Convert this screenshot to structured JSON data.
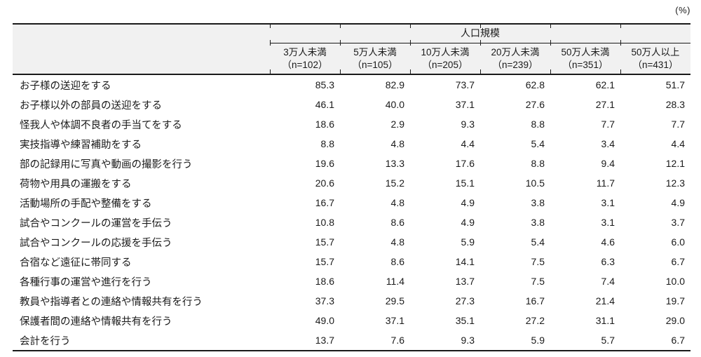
{
  "unit_label": "(%)",
  "colors": {
    "header_bg": "#f1f1f1",
    "border": "#1a1a1a",
    "text": "#1a1a1a",
    "body_bg": "#ffffff"
  },
  "chart_data": {
    "type": "table",
    "group_header": "人口規模",
    "unit": "%",
    "columns": [
      {
        "label": "3万人未満",
        "n": 102
      },
      {
        "label": "5万人未満",
        "n": 105
      },
      {
        "label": "10万人未満",
        "n": 205
      },
      {
        "label": "20万人未満",
        "n": 239
      },
      {
        "label": "50万人未満",
        "n": 351
      },
      {
        "label": "50万人以上",
        "n": 431
      }
    ],
    "rows": [
      {
        "label": "お子様の送迎をする",
        "values": [
          85.3,
          82.9,
          73.7,
          62.8,
          62.1,
          51.7
        ]
      },
      {
        "label": "お子様以外の部員の送迎をする",
        "values": [
          46.1,
          40.0,
          37.1,
          27.6,
          27.1,
          28.3
        ]
      },
      {
        "label": "怪我人や体調不良者の手当てをする",
        "values": [
          18.6,
          2.9,
          9.3,
          8.8,
          7.7,
          7.7
        ]
      },
      {
        "label": "実技指導や練習補助をする",
        "values": [
          8.8,
          4.8,
          4.4,
          5.4,
          3.4,
          4.4
        ]
      },
      {
        "label": "部の記録用に写真や動画の撮影を行う",
        "values": [
          19.6,
          13.3,
          17.6,
          8.8,
          9.4,
          12.1
        ]
      },
      {
        "label": "荷物や用具の運搬をする",
        "values": [
          20.6,
          15.2,
          15.1,
          10.5,
          11.7,
          12.3
        ]
      },
      {
        "label": "活動場所の手配や整備をする",
        "values": [
          16.7,
          4.8,
          4.9,
          3.8,
          3.1,
          4.9
        ]
      },
      {
        "label": "試合やコンクールの運営を手伝う",
        "values": [
          10.8,
          8.6,
          4.9,
          3.8,
          3.1,
          3.7
        ]
      },
      {
        "label": "試合やコンクールの応援を手伝う",
        "values": [
          15.7,
          4.8,
          5.9,
          5.4,
          4.6,
          6.0
        ]
      },
      {
        "label": "合宿など遠征に帯同する",
        "values": [
          15.7,
          8.6,
          14.1,
          7.5,
          6.3,
          6.7
        ]
      },
      {
        "label": "各種行事の運営や進行を行う",
        "values": [
          18.6,
          11.4,
          13.7,
          7.5,
          7.4,
          10.0
        ]
      },
      {
        "label": "教員や指導者との連絡や情報共有を行う",
        "values": [
          37.3,
          29.5,
          27.3,
          16.7,
          21.4,
          19.7
        ]
      },
      {
        "label": "保護者間の連絡や情報共有を行う",
        "values": [
          49.0,
          37.1,
          35.1,
          27.2,
          31.1,
          29.0
        ]
      },
      {
        "label": "会計を行う",
        "values": [
          13.7,
          7.6,
          9.3,
          5.9,
          5.7,
          6.7
        ]
      }
    ]
  }
}
